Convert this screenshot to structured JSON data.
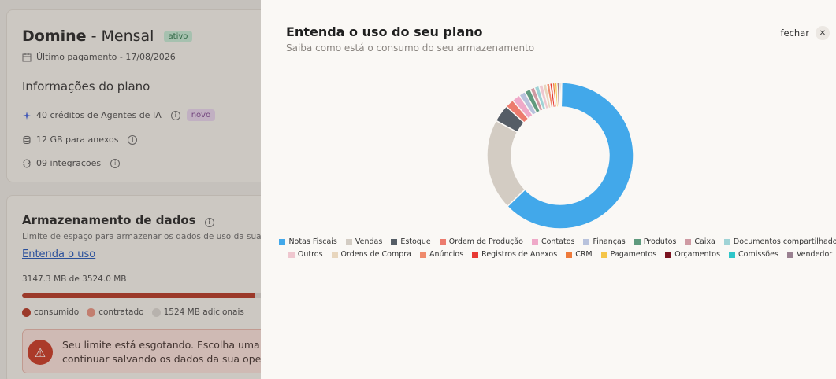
{
  "plan": {
    "name": "Domine",
    "separator": "-",
    "period": "Mensal",
    "status": "ativo",
    "last_payment": "Último pagamento - 17/08/2026",
    "info_title": "Informações do plano",
    "features": [
      {
        "label": "40 créditos de Agentes de IA",
        "badge": "novo",
        "icon": "sparkle-icon"
      },
      {
        "label": "12 GB para anexos",
        "icon": "database-icon"
      },
      {
        "label": "09 integrações",
        "icon": "sync-icon"
      }
    ]
  },
  "storage": {
    "title": "Armazenamento de dados",
    "description": "Limite de espaço para armazenar os dados de uso da sua c",
    "link": "Entenda o uso",
    "usage": "3147.3 MB de 3524.0 MB",
    "fill_fraction": 0.893,
    "legend": [
      {
        "label": "consumido",
        "color": "#b0301d"
      },
      {
        "label": "contratado",
        "color": "#e58c7a"
      },
      {
        "label": "1524 MB adicionais",
        "color": "#d6d2cc"
      }
    ],
    "alert_line1": "Seu limite está esgotando. Escolha uma op",
    "alert_line2": "continuar salvando os dados da sua opera"
  },
  "panel": {
    "title": "Entenda o uso do seu plano",
    "subtitle": "Saiba como está o consumo do seu armazenamento",
    "close_label": "fechar"
  },
  "chart_data": {
    "type": "pie",
    "series": [
      {
        "label": "Notas Fiscais",
        "value": 62.0,
        "color": "#42a8ea"
      },
      {
        "label": "Vendas",
        "value": 20.0,
        "color": "#d3ccc3"
      },
      {
        "label": "Estoque",
        "value": 3.8,
        "color": "#555d66"
      },
      {
        "label": "Ordem de Produção",
        "value": 1.9,
        "color": "#ec7b6d"
      },
      {
        "label": "Contatos",
        "value": 1.8,
        "color": "#efa9c8"
      },
      {
        "label": "Finanças",
        "value": 1.4,
        "color": "#b8c2dc"
      },
      {
        "label": "Produtos",
        "value": 1.3,
        "color": "#5f9a7e"
      },
      {
        "label": "Caixa",
        "value": 1.0,
        "color": "#cf9aa3"
      },
      {
        "label": "Documentos compartilhados",
        "value": 1.0,
        "color": "#9fd3d6"
      },
      {
        "label": "Outros",
        "value": 0.9,
        "color": "#efc7cf"
      },
      {
        "label": "Ordens de Compra",
        "value": 0.8,
        "color": "#e8d6bd"
      },
      {
        "label": "Anúncios",
        "value": 0.7,
        "color": "#ef8a6c"
      },
      {
        "label": "Registros de Anexos",
        "value": 0.6,
        "color": "#e83a34"
      },
      {
        "label": "CRM",
        "value": 0.5,
        "color": "#ee7a3b"
      },
      {
        "label": "Pagamentos",
        "value": 0.5,
        "color": "#f5c548"
      },
      {
        "label": "Orçamentos",
        "value": 0.4,
        "color": "#7a1320"
      },
      {
        "label": "Comissões",
        "value": 0.3,
        "color": "#2fc6c9"
      },
      {
        "label": "Vendedor",
        "value": 0.3,
        "color": "#9a8191"
      }
    ],
    "legend_placement": "bottom"
  }
}
